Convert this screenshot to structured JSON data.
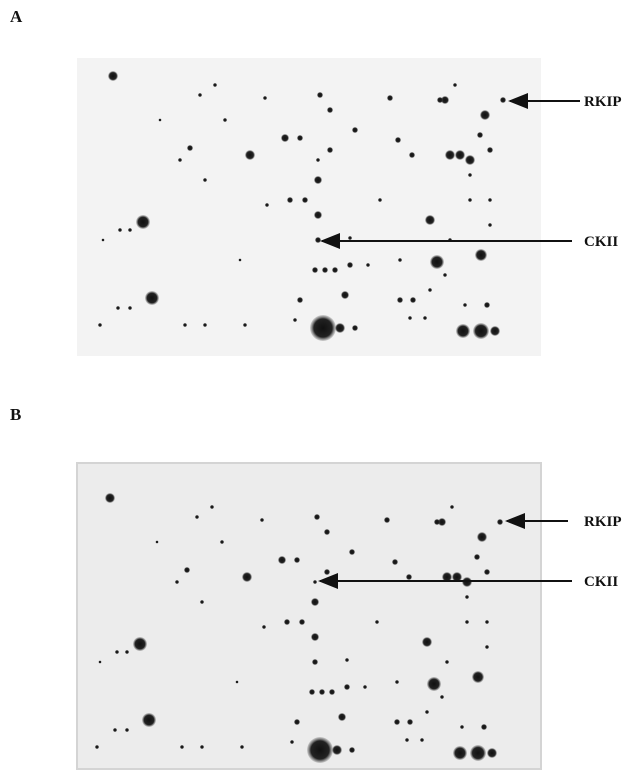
{
  "panels": [
    {
      "label": "A",
      "annotations": [
        {
          "label": "RKIP"
        },
        {
          "label": "CKII"
        }
      ]
    },
    {
      "label": "B",
      "annotations": [
        {
          "label": "RKIP"
        },
        {
          "label": "CKII"
        }
      ]
    }
  ]
}
